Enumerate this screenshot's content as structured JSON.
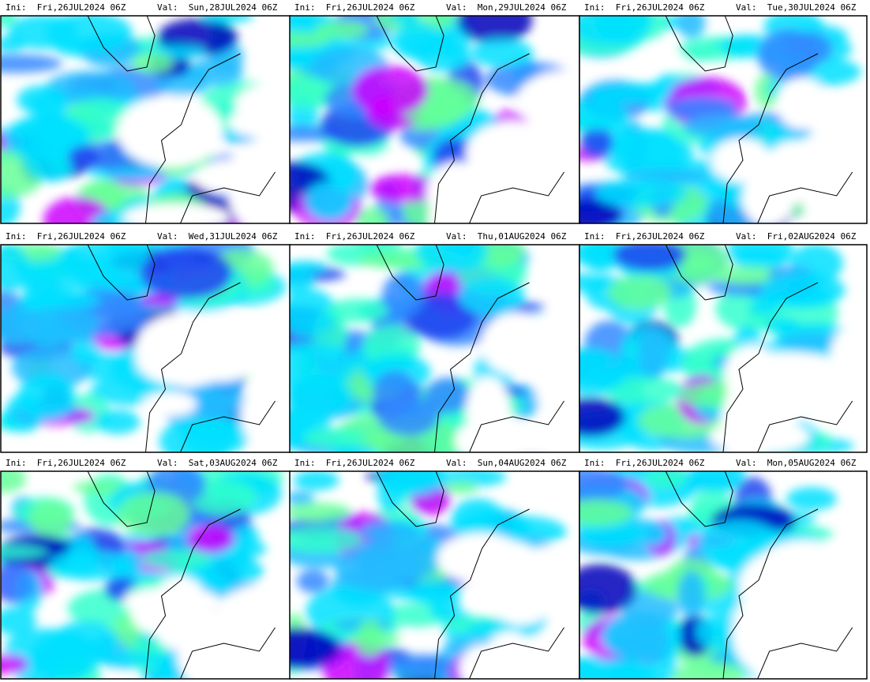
{
  "panels": [
    {
      "ini": "Ini:  Fri,26JUL2024 06Z",
      "val": "Val:  Sun,28JUL2024 06Z"
    },
    {
      "ini": "Ini:  Fri,26JUL2024 06Z",
      "val": "Val:  Mon,29JUL2024 06Z"
    },
    {
      "ini": "Ini:  Fri,26JUL2024 06Z",
      "val": "Val:  Tue,30JUL2024 06Z"
    },
    {
      "ini": "Ini:  Fri,26JUL2024 06Z",
      "val": "Val:  Wed,31JUL2024 06Z"
    },
    {
      "ini": "Ini:  Fri,26JUL2024 06Z",
      "val": "Val:  Thu,01AUG2024 06Z"
    },
    {
      "ini": "Ini:  Fri,26JUL2024 06Z",
      "val": "Val:  Fri,02AUG2024 06Z"
    },
    {
      "ini": "Ini:  Fri,26JUL2024 06Z",
      "val": "Val:  Sat,03AUG2024 06Z"
    },
    {
      "ini": "Ini:  Fri,26JUL2024 06Z",
      "val": "Val:  Sun,04AUG2024 06Z"
    },
    {
      "ini": "Ini:  Fri,26JUL2024 06Z",
      "val": "Val:  Mon,05AUG2024 06Z"
    }
  ]
}
